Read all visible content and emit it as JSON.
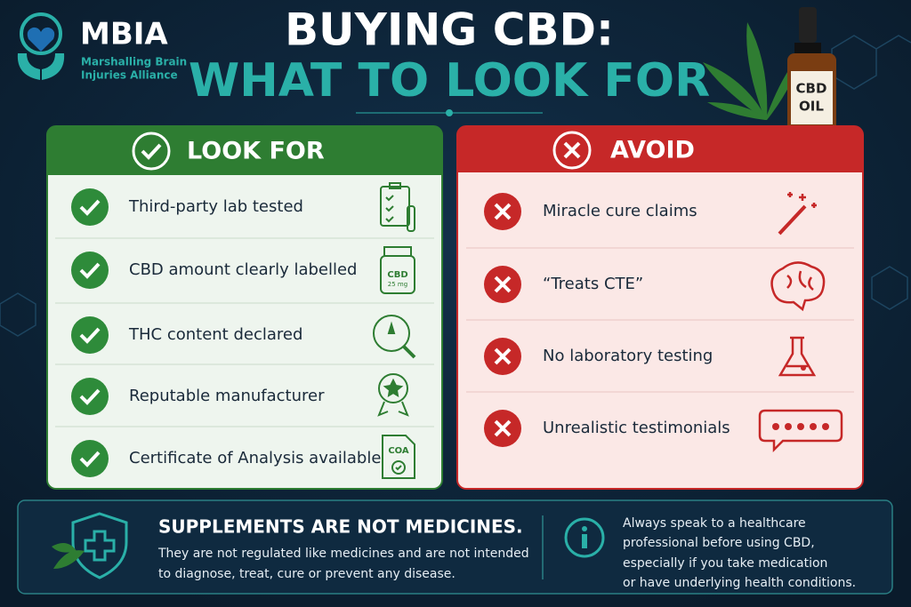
{
  "logo": {
    "name": "MBIA",
    "subtitle": [
      "Marshalling Brain",
      "Injuries Alliance"
    ]
  },
  "title": {
    "line1": "BUYING CBD:",
    "line2": "WHAT TO LOOK FOR"
  },
  "bottle": {
    "label": [
      "CBD",
      "OIL"
    ]
  },
  "look_for": {
    "heading": "LOOK FOR",
    "items": [
      "Third-party lab tested",
      "CBD amount clearly labelled",
      "THC content declared",
      "Reputable manufacturer",
      "Certificate of Analysis available"
    ],
    "icon_texts": {
      "jar": "CBD",
      "dose": "25 mg",
      "coa": "COA"
    }
  },
  "avoid": {
    "heading": "AVOID",
    "items": [
      "Miracle cure claims",
      "“Treats CTE”",
      "No laboratory testing",
      "Unrealistic testimonials"
    ]
  },
  "footer": {
    "title": "SUPPLEMENTS ARE NOT MEDICINES.",
    "body": [
      "They are not regulated like medicines and are not intended",
      "to diagnose, treat, cure or prevent any disease."
    ],
    "advice": [
      "Always speak to a healthcare",
      "professional before using CBD,",
      "especially if you take medication",
      "or have underlying health conditions."
    ]
  }
}
